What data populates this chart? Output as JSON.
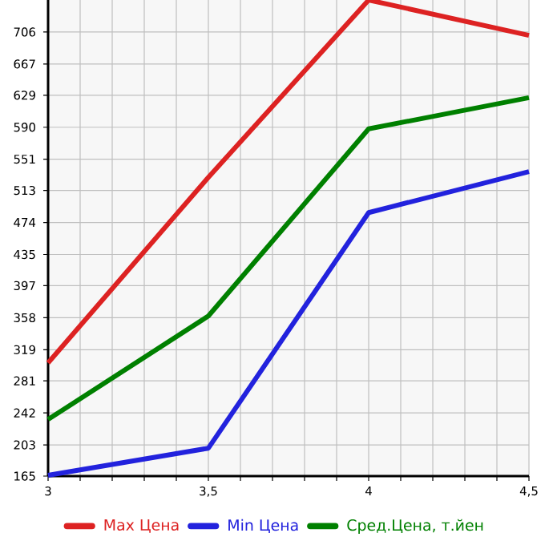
{
  "chart_data": {
    "type": "line",
    "x": [
      3,
      3.5,
      4,
      4.5
    ],
    "series": [
      {
        "name": "Max Цена",
        "color": "#dd2222",
        "values": [
          303,
          529,
          745,
          702
        ]
      },
      {
        "name": "Min Цена",
        "color": "#2222dd",
        "values": [
          166,
          199,
          486,
          536
        ]
      },
      {
        "name": "Сред.Цена, т.йен",
        "color": "#008000",
        "values": [
          234,
          360,
          588,
          626
        ]
      }
    ],
    "xlim": [
      3,
      4.5
    ],
    "xticks": [
      3,
      {
        "value": 3.5,
        "label": "3,5"
      },
      4,
      {
        "value": 4.5,
        "label": "4,5"
      }
    ],
    "ylim": [
      165,
      745
    ],
    "yticks": [
      165,
      203,
      242,
      281,
      319,
      358,
      397,
      435,
      474,
      513,
      551,
      590,
      629,
      667,
      706
    ],
    "grid": true,
    "legend": "bottom",
    "marker": "none",
    "line_style": "solid"
  }
}
